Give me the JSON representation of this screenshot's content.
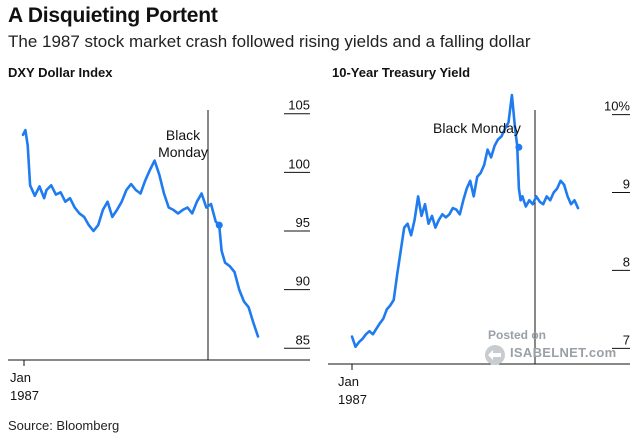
{
  "header": {
    "title": "A Disquieting Portent",
    "subtitle": "The 1987 stock market crash followed rising yields and a falling dollar"
  },
  "footer": {
    "source": "Source: Bloomberg"
  },
  "watermark": {
    "posted": "Posted on",
    "site": "ISABELNET.com"
  },
  "colors": {
    "line": "#1e7bf0",
    "axis": "#111111",
    "text": "#111111",
    "watermark": "#9aa0a6"
  },
  "chart_data": [
    {
      "type": "line",
      "title": "DXY Dollar Index",
      "x_tick_labels": [
        "Jan",
        "1987"
      ],
      "y_ticks": [
        85,
        90,
        95,
        100,
        105
      ],
      "y_tick_labels": [
        "85",
        "90",
        "95",
        "100",
        "105"
      ],
      "ylim": [
        84,
        106
      ],
      "grid": false,
      "annotation": {
        "label_lines": [
          "Black",
          "Monday"
        ],
        "x": 0.835,
        "y": 95.5
      },
      "series": [
        {
          "x": [
            0,
            0.01,
            0.02,
            0.03,
            0.05,
            0.07,
            0.09,
            0.1,
            0.12,
            0.14,
            0.16,
            0.18,
            0.2,
            0.22,
            0.24,
            0.26,
            0.28,
            0.3,
            0.32,
            0.34,
            0.36,
            0.38,
            0.4,
            0.42,
            0.44,
            0.46,
            0.48,
            0.5,
            0.52,
            0.54,
            0.56,
            0.58,
            0.6,
            0.62,
            0.64,
            0.66,
            0.68,
            0.7,
            0.72,
            0.74,
            0.76,
            0.78,
            0.8,
            0.82,
            0.835,
            0.845,
            0.86,
            0.88,
            0.9,
            0.92,
            0.94,
            0.96,
            0.98,
            1.0
          ],
          "values": [
            103.2,
            103.6,
            102.3,
            98.9,
            98.0,
            98.8,
            97.8,
            98.5,
            98.9,
            98.1,
            98.3,
            97.5,
            97.8,
            97.0,
            96.5,
            96.2,
            95.5,
            95.0,
            95.5,
            96.8,
            97.5,
            96.2,
            96.8,
            97.5,
            98.5,
            99.0,
            98.5,
            98.2,
            99.3,
            100.2,
            101.0,
            99.8,
            98.2,
            97.0,
            96.8,
            96.5,
            96.8,
            97.0,
            96.5,
            97.5,
            98.2,
            97.0,
            97.3,
            95.8,
            95.5,
            93.3,
            92.3,
            92.0,
            91.5,
            90.0,
            89.0,
            88.5,
            87.2,
            86.0
          ]
        }
      ]
    },
    {
      "type": "line",
      "title": "10-Year Treasury Yield",
      "x_tick_labels": [
        "Jan",
        "1987"
      ],
      "y_ticks": [
        7,
        8,
        9,
        10
      ],
      "y_tick_labels": [
        "7",
        "8",
        "9",
        "10%"
      ],
      "ylim": [
        6.85,
        10.2
      ],
      "grid": false,
      "annotation": {
        "label_lines": [
          "Black Monday"
        ],
        "x": 0.96,
        "y": 9.58
      },
      "series": [
        {
          "x": [
            0,
            0.02,
            0.04,
            0.06,
            0.08,
            0.1,
            0.12,
            0.14,
            0.16,
            0.18,
            0.2,
            0.22,
            0.24,
            0.26,
            0.28,
            0.3,
            0.32,
            0.34,
            0.36,
            0.38,
            0.4,
            0.42,
            0.44,
            0.46,
            0.48,
            0.5,
            0.52,
            0.54,
            0.56,
            0.58,
            0.6,
            0.62,
            0.64,
            0.66,
            0.68,
            0.7,
            0.72,
            0.74,
            0.76,
            0.78,
            0.8,
            0.82,
            0.84,
            0.86,
            0.88,
            0.9,
            0.92,
            0.94,
            0.95,
            0.96,
            0.97,
            0.98
          ],
          "values": [
            7.15,
            7.02,
            7.08,
            7.12,
            7.18,
            7.22,
            7.18,
            7.25,
            7.32,
            7.38,
            7.5,
            7.55,
            7.62,
            7.95,
            8.25,
            8.55,
            8.6,
            8.45,
            8.65,
            8.95,
            8.7,
            8.85,
            8.6,
            8.7,
            8.55,
            8.65,
            8.72,
            8.68,
            8.72,
            8.8,
            8.78,
            8.72,
            8.9,
            9.05,
            9.15,
            8.95,
            9.2,
            9.25,
            9.35,
            9.55,
            9.45,
            9.6,
            9.68,
            9.72,
            9.82,
            9.9,
            10.25,
            9.78,
            9.6,
            9.05,
            8.9,
            8.95
          ]
        },
        {
          "x": [
            0.98,
            1.0,
            1.02,
            1.04,
            1.06,
            1.08,
            1.1,
            1.12,
            1.14,
            1.16,
            1.18,
            1.2,
            1.22,
            1.24,
            1.26,
            1.28,
            1.3
          ],
          "values": [
            8.95,
            8.82,
            8.9,
            8.85,
            8.95,
            8.88,
            8.85,
            8.95,
            8.9,
            9.0,
            9.05,
            9.15,
            9.1,
            8.95,
            8.85,
            8.9,
            8.8
          ]
        }
      ]
    }
  ]
}
